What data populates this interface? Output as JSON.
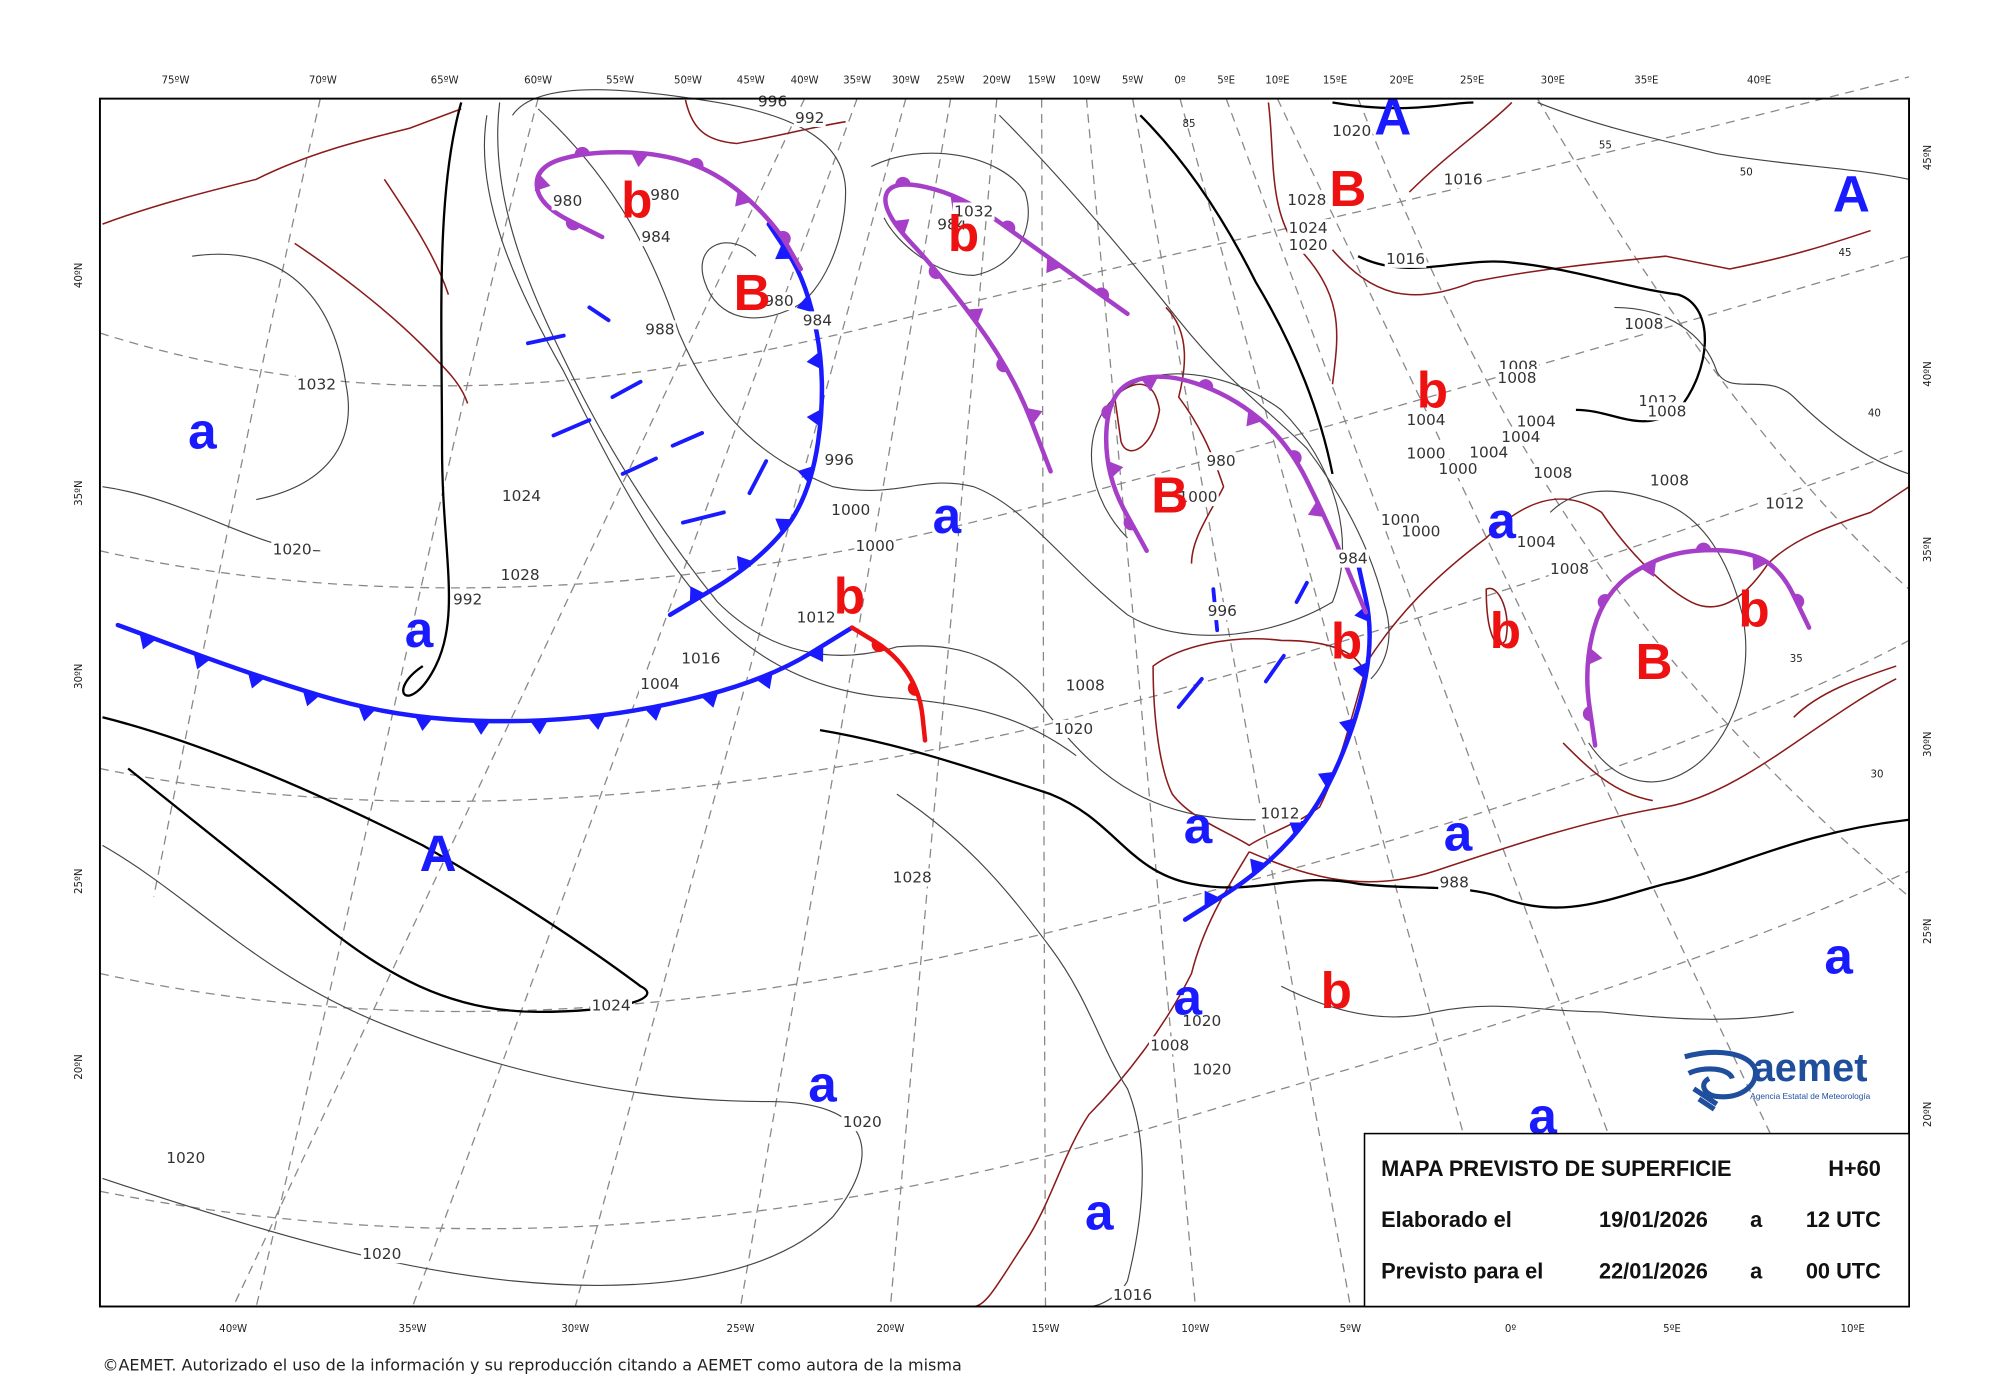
{
  "map": {
    "top_longitude_labels": [
      "75ºW",
      "70ºW",
      "65ºW",
      "60ºW",
      "55ºW",
      "50ºW",
      "45ºW",
      "40ºW",
      "35ºW",
      "30ºW",
      "25ºW",
      "20ºW",
      "15ºW",
      "10ºW",
      "5ºW",
      "0º",
      "5ºE",
      "10ºE",
      "15ºE",
      "20ºE",
      "25ºE",
      "30ºE",
      "35ºE",
      "40ºE"
    ],
    "bottom_longitude_labels": [
      "40ºW",
      "35ºW",
      "30ºW",
      "25ºW",
      "20ºW",
      "15ºW",
      "10ºW",
      "5ºW",
      "0º",
      "5ºE",
      "10ºE"
    ],
    "left_latitude_labels": [
      "40ºN",
      "35ºN",
      "30ºN",
      "25ºN",
      "20ºN"
    ],
    "right_latitude_labels": [
      "45ºN",
      "40ºN",
      "35ºN",
      "30ºN",
      "25ºN",
      "20ºN"
    ],
    "graticule_labels": [
      "85",
      "55",
      "50",
      "45",
      "40",
      "35",
      "30"
    ],
    "isobar_labels": [
      "996",
      "992",
      "980",
      "980",
      "984",
      "980",
      "984",
      "988",
      "984",
      "1032",
      "1032",
      "1020",
      "1024",
      "1028",
      "992",
      "996",
      "1000",
      "1000",
      "1012",
      "1016",
      "1004",
      "1008",
      "1020",
      "1028",
      "1024",
      "1020",
      "1020",
      "1020",
      "1016",
      "1020",
      "1020",
      "1008",
      "1012",
      "988",
      "996",
      "984",
      "980",
      "1000",
      "1000",
      "1000",
      "1000",
      "1000",
      "1004",
      "1004",
      "1004",
      "1004",
      "1004",
      "1008",
      "1008",
      "1008",
      "1008",
      "1008",
      "1012",
      "1008",
      "1008",
      "1012",
      "1016",
      "1020",
      "1024",
      "1028",
      "1020",
      "1016"
    ],
    "highs": [
      "A",
      "A",
      "A",
      "a",
      "a",
      "a",
      "a",
      "a",
      "a",
      "a",
      "a",
      "a",
      "a",
      "a"
    ],
    "lows": [
      "B",
      "B",
      "B",
      "B",
      "b",
      "b",
      "b",
      "b",
      "b",
      "b",
      "b",
      "b"
    ]
  },
  "info_box": {
    "title": "MAPA PREVISTO DE SUPERFICIE",
    "forecast_step": "H+60",
    "rows": [
      [
        "Elaborado el",
        "19/01/2026",
        "a",
        "12 UTC"
      ],
      [
        "Previsto para el",
        "22/01/2026",
        "a",
        "00 UTC"
      ]
    ]
  },
  "logo": {
    "name": "aemet",
    "subtitle": "Agencia Estatal de Meteorología"
  },
  "footer": "©AEMET. Autorizado el uso de la información y su reproducción citando a AEMET como autora de la misma"
}
